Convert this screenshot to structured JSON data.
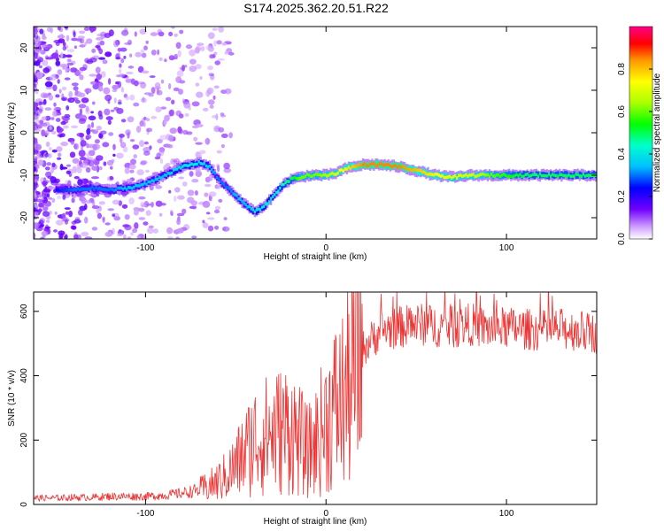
{
  "chart_data": [
    {
      "type": "heatmap",
      "title": "S174.2025.362.20.51.R22",
      "xlabel": "Height of straight line (km)",
      "ylabel": "Frequency (Hz)",
      "xlim": [
        -162,
        150
      ],
      "ylim": [
        -25,
        25
      ],
      "xticks": [
        -100,
        0,
        100
      ],
      "yticks": [
        -20,
        -10,
        0,
        10,
        20
      ],
      "colorbar": {
        "label": "Normalized spectral amplitude",
        "range": [
          0,
          1
        ],
        "ticks": [
          0.0,
          0.2,
          0.4,
          0.6,
          0.8
        ]
      },
      "ridge": {
        "x": [
          -150,
          -140,
          -130,
          -120,
          -110,
          -100,
          -90,
          -80,
          -75,
          -70,
          -65,
          -60,
          -55,
          -50,
          -45,
          -40,
          -35,
          -30,
          -25,
          -20,
          -15,
          -10,
          -5,
          0,
          5,
          10,
          15,
          20,
          30,
          40,
          50,
          60,
          70,
          80,
          90,
          100,
          110,
          120,
          130,
          140,
          150
        ],
        "frequency": [
          -13.5,
          -13.5,
          -13,
          -13.5,
          -13,
          -12,
          -10,
          -8,
          -7.5,
          -7,
          -8,
          -11,
          -13,
          -15,
          -17,
          -18.5,
          -17.5,
          -15,
          -12.5,
          -11,
          -10.5,
          -10,
          -10,
          -10,
          -9.5,
          -8.5,
          -8,
          -7.5,
          -7.5,
          -8,
          -9,
          -10,
          -10.5,
          -10,
          -10,
          -10,
          -10,
          -10,
          -10,
          -10,
          -10
        ],
        "amplitude": [
          0.25,
          0.3,
          0.3,
          0.3,
          0.35,
          0.35,
          0.35,
          0.4,
          0.4,
          0.4,
          0.35,
          0.3,
          0.3,
          0.35,
          0.35,
          0.4,
          0.4,
          0.4,
          0.45,
          0.5,
          0.6,
          0.6,
          0.6,
          0.65,
          0.7,
          0.75,
          0.8,
          0.85,
          0.85,
          0.85,
          0.8,
          0.75,
          0.7,
          0.7,
          0.6,
          0.55,
          0.5,
          0.5,
          0.5,
          0.5,
          0.5
        ]
      }
    },
    {
      "type": "line",
      "xlabel": "Height of straight line (km)",
      "ylabel": "SNR (10 * v/v)",
      "xlim": [
        -162,
        150
      ],
      "ylim": [
        0,
        660
      ],
      "xticks": [
        -100,
        0,
        100
      ],
      "yticks": [
        0,
        200,
        400,
        600
      ],
      "series": [
        {
          "name": "SNR",
          "color": "#ee3333",
          "x": [
            -162,
            -150,
            -140,
            -130,
            -120,
            -110,
            -100,
            -90,
            -80,
            -70,
            -65,
            -60,
            -55,
            -50,
            -45,
            -40,
            -35,
            -30,
            -25,
            -20,
            -15,
            -10,
            -5,
            0,
            5,
            10,
            15,
            20,
            25,
            30,
            40,
            50,
            60,
            70,
            80,
            90,
            100,
            110,
            120,
            130,
            140,
            150
          ],
          "y": [
            20,
            20,
            22,
            22,
            25,
            25,
            25,
            28,
            35,
            45,
            55,
            70,
            90,
            120,
            160,
            200,
            210,
            220,
            230,
            240,
            200,
            160,
            200,
            260,
            300,
            330,
            400,
            480,
            510,
            540,
            550,
            560,
            555,
            550,
            560,
            545,
            550,
            545,
            540,
            545,
            540,
            530
          ]
        }
      ]
    }
  ],
  "colors": {
    "snr_line": "#ee3333",
    "axis": "#000000",
    "background": "#ffffff"
  }
}
